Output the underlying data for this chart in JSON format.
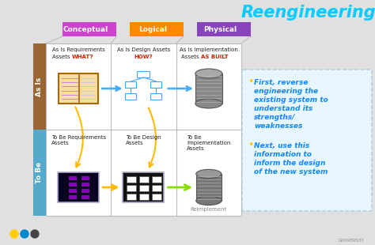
{
  "title": "Reengineering",
  "title_color": "#00ccff",
  "bg_color": "#e0e0e0",
  "col_headers": [
    "Conceptual",
    "Logical",
    "Physical"
  ],
  "col_header_colors": [
    "#cc44cc",
    "#ff8800",
    "#8844bb"
  ],
  "row_headers": [
    "As Is",
    "To Be"
  ],
  "row_header_colors_bg": [
    "#996633",
    "#55aacc"
  ],
  "as_is_highlights": [
    "WHAT?",
    "HOW?",
    "AS BUILT"
  ],
  "as_is_highlight_color": "#cc2200",
  "as_is_plain": [
    [
      "As Is Requirements",
      "Assets "
    ],
    [
      "As Is Design Assets",
      ""
    ],
    [
      "As Is Implementation",
      "Assets "
    ]
  ],
  "to_be_labels": [
    "To Be Requirements\nAssets",
    "To Be Design\nAssets",
    "To Be\nImplementation\nAssets"
  ],
  "bullet_color": "#ffcc00",
  "bullet_text_color": "#1188ff",
  "bullet1_lines": [
    "First, reverse",
    "engineering the",
    "existing system to",
    "understand its",
    "strengths/",
    "weaknesses"
  ],
  "bullet2_lines": [
    "Next, use this",
    "information to",
    "inform the design",
    "of the new system"
  ],
  "reimplement_label": "Reimplement",
  "footer_dot_colors": [
    "#ffcc00",
    "#0088cc",
    "#444444"
  ],
  "grid_color": "#bbbbbb",
  "white": "#ffffff",
  "light_blue_callout": "#e8f4ff"
}
